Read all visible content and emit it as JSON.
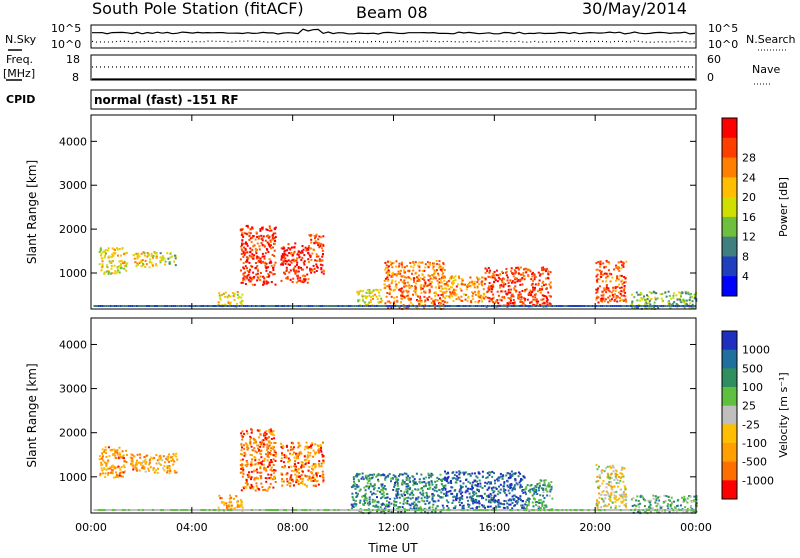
{
  "header": {
    "title": "South Pole Station (fitACF)",
    "beam": "Beam 08",
    "date": "30/May/2014"
  },
  "strip_labels": {
    "nsky": "N.Sky",
    "nsearch": "N.Search",
    "freq_top": "Freq.",
    "freq_unit": "[MHz]",
    "nave": "Nave",
    "cpid": "CPID",
    "cpid_text": "normal (fast) -151 RF",
    "noise_left_top": "10^5",
    "noise_left_bottom": "10^0",
    "noise_right_top": "10^5",
    "noise_right_bottom": "10^0",
    "freq_left_top": "18",
    "freq_left_bottom": "8",
    "nave_right_top": "60",
    "nave_right_bottom": "0"
  },
  "colors": {
    "power": [
      "#0000ff",
      "#1f3fbf",
      "#3f7f7f",
      "#6fbf3f",
      "#cfdf00",
      "#ffbf00",
      "#ff7f00",
      "#ff3f00",
      "#ff0000"
    ],
    "velocity": [
      "#1f2fbf",
      "#1f6f9f",
      "#2f8f5f",
      "#5fbf3f",
      "#bfbfbf",
      "#ffbf00",
      "#ff9f00",
      "#ff6f00",
      "#ff0000"
    ]
  },
  "chart_data": [
    {
      "type": "heatmap",
      "name": "power",
      "ylabel": "Slant Range [km]",
      "xlabel": "",
      "x_ticks": [
        "00:00",
        "04:00",
        "08:00",
        "12:00",
        "16:00",
        "20:00",
        "00:00"
      ],
      "xlim_hours": [
        0,
        24
      ],
      "y_ticks": [
        1000,
        2000,
        3000,
        4000
      ],
      "ylim_km": [
        180,
        4600
      ],
      "colorbar_label": "Power [dB]",
      "colorbar_ticks": [
        "4",
        "8",
        "12",
        "16",
        "20",
        "24",
        "28"
      ],
      "blobs": [
        {
          "t0": 0.3,
          "t1": 1.4,
          "r0": 1000,
          "r1": 1600,
          "level": 0.55
        },
        {
          "t0": 1.5,
          "t1": 2.6,
          "r0": 1150,
          "r1": 1500,
          "level": 0.6
        },
        {
          "t0": 2.7,
          "t1": 3.4,
          "r0": 1200,
          "r1": 1500,
          "level": 0.45
        },
        {
          "t0": 5.0,
          "t1": 6.0,
          "r0": 250,
          "r1": 600,
          "level": 0.55
        },
        {
          "t0": 5.9,
          "t1": 7.3,
          "r0": 750,
          "r1": 2100,
          "level": 0.9
        },
        {
          "t0": 7.5,
          "t1": 8.6,
          "r0": 800,
          "r1": 1700,
          "level": 0.92
        },
        {
          "t0": 8.6,
          "t1": 9.2,
          "r0": 1000,
          "r1": 1900,
          "level": 0.85
        },
        {
          "t0": 10.5,
          "t1": 11.5,
          "r0": 250,
          "r1": 650,
          "level": 0.5
        },
        {
          "t0": 11.6,
          "t1": 14.0,
          "r0": 200,
          "r1": 1300,
          "level": 0.75
        },
        {
          "t0": 14.0,
          "t1": 15.6,
          "r0": 350,
          "r1": 950,
          "level": 0.72
        },
        {
          "t0": 15.6,
          "t1": 18.2,
          "r0": 250,
          "r1": 1150,
          "level": 0.85
        },
        {
          "t0": 20.0,
          "t1": 21.2,
          "r0": 350,
          "r1": 1300,
          "level": 0.8
        },
        {
          "t0": 21.4,
          "t1": 24.0,
          "r0": 200,
          "r1": 600,
          "level": 0.4
        }
      ]
    },
    {
      "type": "heatmap",
      "name": "velocity",
      "ylabel": "Slant Range [km]",
      "xlabel": "Time UT",
      "x_ticks": [
        "00:00",
        "04:00",
        "08:00",
        "12:00",
        "16:00",
        "20:00",
        "00:00"
      ],
      "xlim_hours": [
        0,
        24
      ],
      "y_ticks": [
        1000,
        2000,
        3000,
        4000
      ],
      "ylim_km": [
        180,
        4600
      ],
      "colorbar_label": "Velocity [m s⁻¹]",
      "colorbar_ticks": [
        "1000",
        "500",
        "100",
        "25",
        "-25",
        "-100",
        "-500",
        "-1000"
      ],
      "blobs": [
        {
          "t0": 0.3,
          "t1": 1.4,
          "r0": 1000,
          "r1": 1700,
          "level": 0.75
        },
        {
          "t0": 1.5,
          "t1": 3.4,
          "r0": 1100,
          "r1": 1550,
          "level": 0.72
        },
        {
          "t0": 5.0,
          "t1": 6.0,
          "r0": 250,
          "r1": 600,
          "level": 0.72
        },
        {
          "t0": 5.9,
          "t1": 7.3,
          "r0": 700,
          "r1": 2100,
          "level": 0.82
        },
        {
          "t0": 7.5,
          "t1": 9.2,
          "r0": 800,
          "r1": 1800,
          "level": 0.8
        },
        {
          "t0": 10.3,
          "t1": 14.0,
          "r0": 200,
          "r1": 1100,
          "level": 0.25
        },
        {
          "t0": 14.0,
          "t1": 17.2,
          "r0": 300,
          "r1": 1150,
          "level": 0.12
        },
        {
          "t0": 17.2,
          "t1": 18.3,
          "r0": 250,
          "r1": 950,
          "level": 0.3
        },
        {
          "t0": 20.0,
          "t1": 21.2,
          "r0": 300,
          "r1": 1300,
          "level": 0.55
        },
        {
          "t0": 21.4,
          "t1": 24.0,
          "r0": 200,
          "r1": 600,
          "level": 0.35
        }
      ]
    }
  ]
}
